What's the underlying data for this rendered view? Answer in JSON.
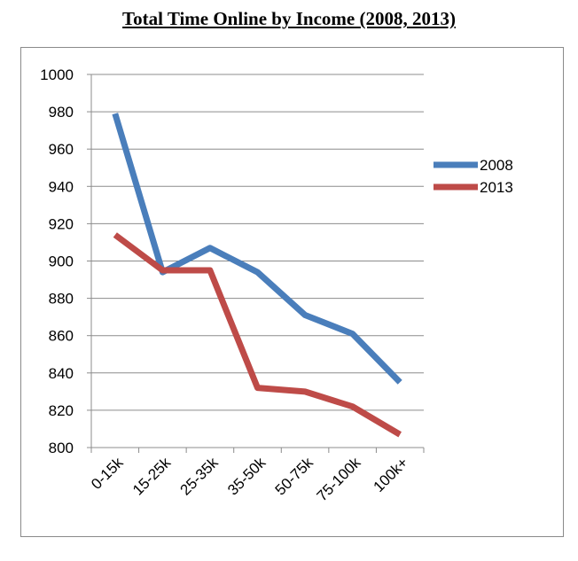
{
  "chart_data": {
    "type": "line",
    "title": "Total Time Online by Income (2008, 2013)",
    "categories": [
      "0-15k",
      "15-25k",
      "25-35k",
      "35-50k",
      "50-75k",
      "75-100k",
      "100k+"
    ],
    "series": [
      {
        "name": "2008",
        "color": "#4a7ebb",
        "values": [
          979,
          894,
          907,
          894,
          871,
          861,
          835
        ]
      },
      {
        "name": "2013",
        "color": "#be4b48",
        "values": [
          914,
          895,
          895,
          832,
          830,
          822,
          807
        ]
      }
    ],
    "ylim": [
      800,
      1000
    ],
    "yticks": [
      "800",
      "820",
      "840",
      "860",
      "880",
      "900",
      "920",
      "940",
      "960",
      "980",
      "1000"
    ],
    "grid": true,
    "legend": "right"
  }
}
